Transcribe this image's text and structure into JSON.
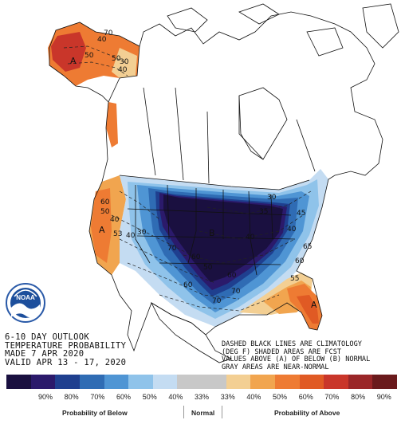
{
  "title_lines": [
    "6-10 DAY OUTLOOK",
    "TEMPERATURE PROBABILITY",
    "MADE   7 APR 2020",
    "VALID  APR 13 - 17, 2020"
  ],
  "notes_lines": [
    "DASHED BLACK LINES ARE CLIMATOLOGY",
    "(DEG F) SHADED AREAS ARE FCST",
    "VALUES ABOVE (A) OF BELOW (B) NORMAL",
    "GRAY AREAS ARE NEAR-NORMAL"
  ],
  "logo": {
    "text": "NOAA"
  },
  "map_labels": {
    "region_a_alaska": "A",
    "region_a_west": "A",
    "region_b_central": "B",
    "region_a_florida": "A",
    "contours": [
      "50",
      "40",
      "70",
      "50",
      "30",
      "40",
      "60",
      "50",
      "40",
      "53",
      "40",
      "30",
      "70",
      "60",
      "50",
      "40",
      "35",
      "30",
      "55",
      "40",
      "60",
      "70",
      "60",
      "60",
      "65",
      "70",
      "45"
    ]
  },
  "legend": {
    "colors": [
      "#1a1040",
      "#2b1a6b",
      "#1f3f8f",
      "#2f6cb4",
      "#4f95d4",
      "#8fc3ea",
      "#c4dcf2",
      "#c8c8c8",
      "#c8c8c8",
      "#f3cf93",
      "#f1a54f",
      "#ee7b33",
      "#e05a24",
      "#c9362a",
      "#9a2628",
      "#6a1a1c"
    ],
    "percent_labels": [
      "90%",
      "80%",
      "70%",
      "60%",
      "50%",
      "40%",
      "33%",
      "33%",
      "40%",
      "50%",
      "60%",
      "70%",
      "80%",
      "90%"
    ],
    "below_caption": "Probability of Below",
    "normal_caption": "Normal",
    "above_caption": "Probability of Above"
  },
  "colors": {
    "above_light": "#f3cf93",
    "above_mid": "#ee7b33",
    "above_dark": "#c9362a",
    "below_light": "#8fc3ea",
    "below_mid": "#2f6cb4",
    "below_dark": "#2b1a6b",
    "below_darkest": "#1a1040"
  }
}
